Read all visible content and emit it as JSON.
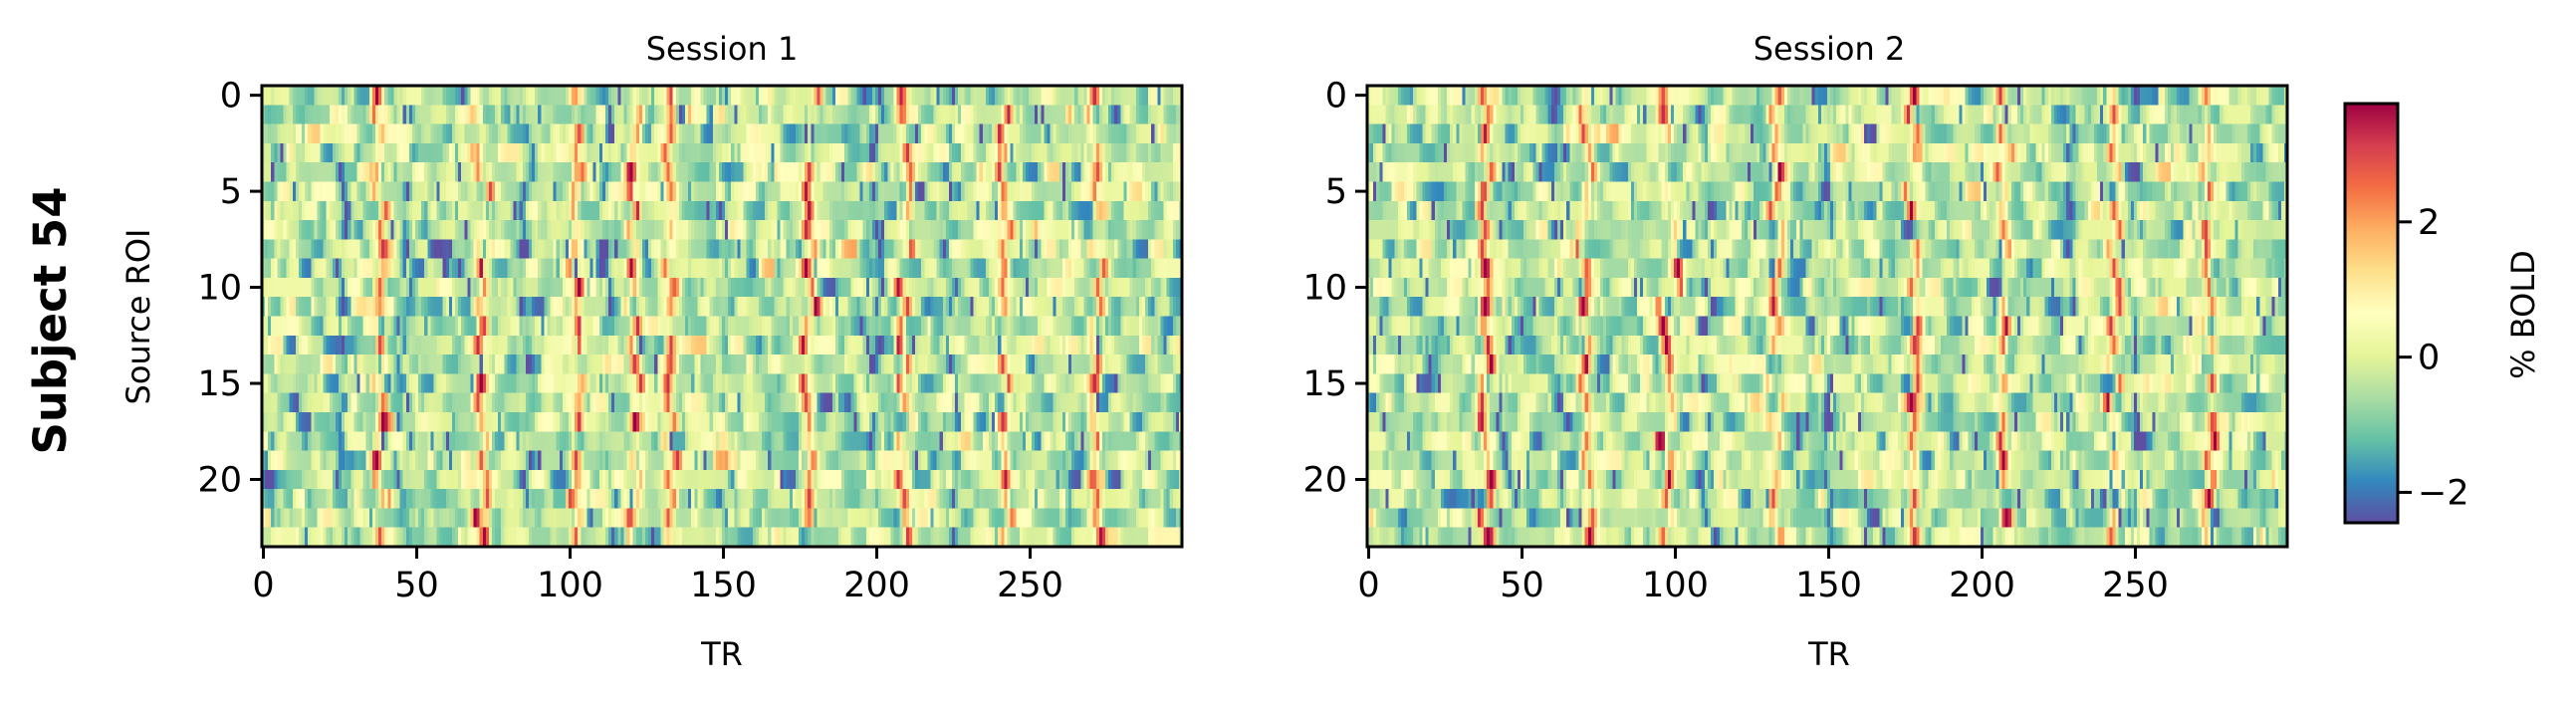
{
  "figure": {
    "row_label": "Subject 54"
  },
  "chart_data": [
    {
      "type": "heatmap",
      "title": "Session 1",
      "xlabel": "TR",
      "ylabel": "Source ROI",
      "x_range": [
        0,
        299
      ],
      "y_range": [
        0,
        23
      ],
      "n_rois": 24,
      "n_trs": 300,
      "xticks": [
        0,
        50,
        100,
        150,
        200,
        250
      ],
      "yticks": [
        0,
        5,
        10,
        15,
        20
      ],
      "y_inverted": true,
      "colormap": "Spectral_r",
      "high_activation_trs": [
        38,
        71,
        102,
        121,
        133,
        178,
        209,
        241,
        271
      ],
      "low_activation_trs": [
        26,
        46,
        86,
        112,
        150,
        200,
        225
      ]
    },
    {
      "type": "heatmap",
      "title": "Session 2",
      "xlabel": "TR",
      "ylabel": "",
      "x_range": [
        0,
        299
      ],
      "y_range": [
        0,
        23
      ],
      "n_rois": 24,
      "n_trs": 300,
      "xticks": [
        0,
        50,
        100,
        150,
        200,
        250
      ],
      "yticks": [
        0,
        5,
        10,
        15,
        20
      ],
      "y_inverted": true,
      "colormap": "Spectral_r",
      "high_activation_trs": [
        38,
        71,
        98,
        133,
        178,
        208,
        243,
        274
      ],
      "low_activation_trs": [
        45,
        62,
        110,
        150,
        229,
        250
      ]
    }
  ],
  "colorbar": {
    "label": "% BOLD",
    "range": [
      -2.45,
      3.75
    ],
    "ticks": [
      -2,
      0,
      2
    ],
    "tick_labels": [
      "−2",
      "0",
      "2"
    ],
    "colors": [
      "#5e4fa2",
      "#3288bd",
      "#66c2a5",
      "#abdda4",
      "#e6f598",
      "#ffffbf",
      "#fee08b",
      "#fdae61",
      "#f46d43",
      "#d53e4f",
      "#9e0142"
    ]
  }
}
